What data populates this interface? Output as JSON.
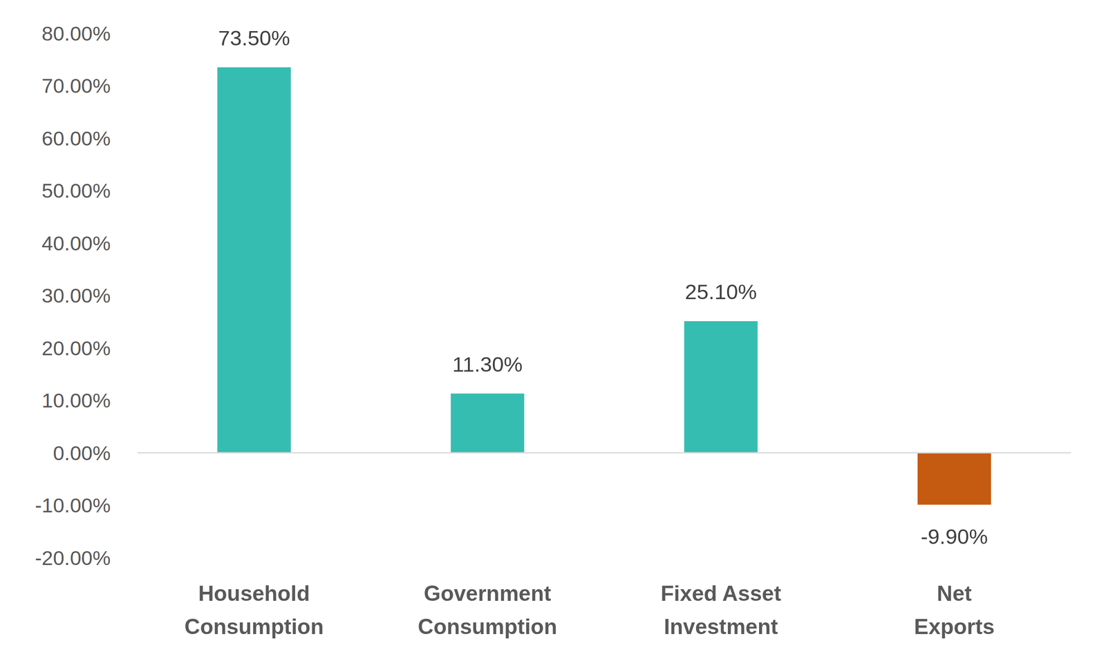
{
  "chart_data": {
    "type": "bar",
    "categories": [
      "Household Consumption",
      "Government Consumption",
      "Fixed Asset Investment",
      "Net Exports"
    ],
    "values": [
      73.5,
      11.3,
      25.1,
      -9.9
    ],
    "value_labels": [
      "73.50%",
      "11.30%",
      "25.10%",
      "-9.90%"
    ],
    "colors": [
      "#36bdb1",
      "#36bdb1",
      "#36bdb1",
      "#c55a11"
    ],
    "ylim": [
      -20,
      80
    ],
    "yticks": [
      {
        "value": -20,
        "label": "-20.00%"
      },
      {
        "value": -10,
        "label": "-10.00%"
      },
      {
        "value": 0,
        "label": "0.00%"
      },
      {
        "value": 10,
        "label": "10.00%"
      },
      {
        "value": 20,
        "label": "20.00%"
      },
      {
        "value": 30,
        "label": "30.00%"
      },
      {
        "value": 40,
        "label": "40.00%"
      },
      {
        "value": 50,
        "label": "50.00%"
      },
      {
        "value": 60,
        "label": "60.00%"
      },
      {
        "value": 70,
        "label": "70.00%"
      },
      {
        "value": 80,
        "label": "80.00%"
      }
    ],
    "grid": false,
    "data_labels": true
  }
}
